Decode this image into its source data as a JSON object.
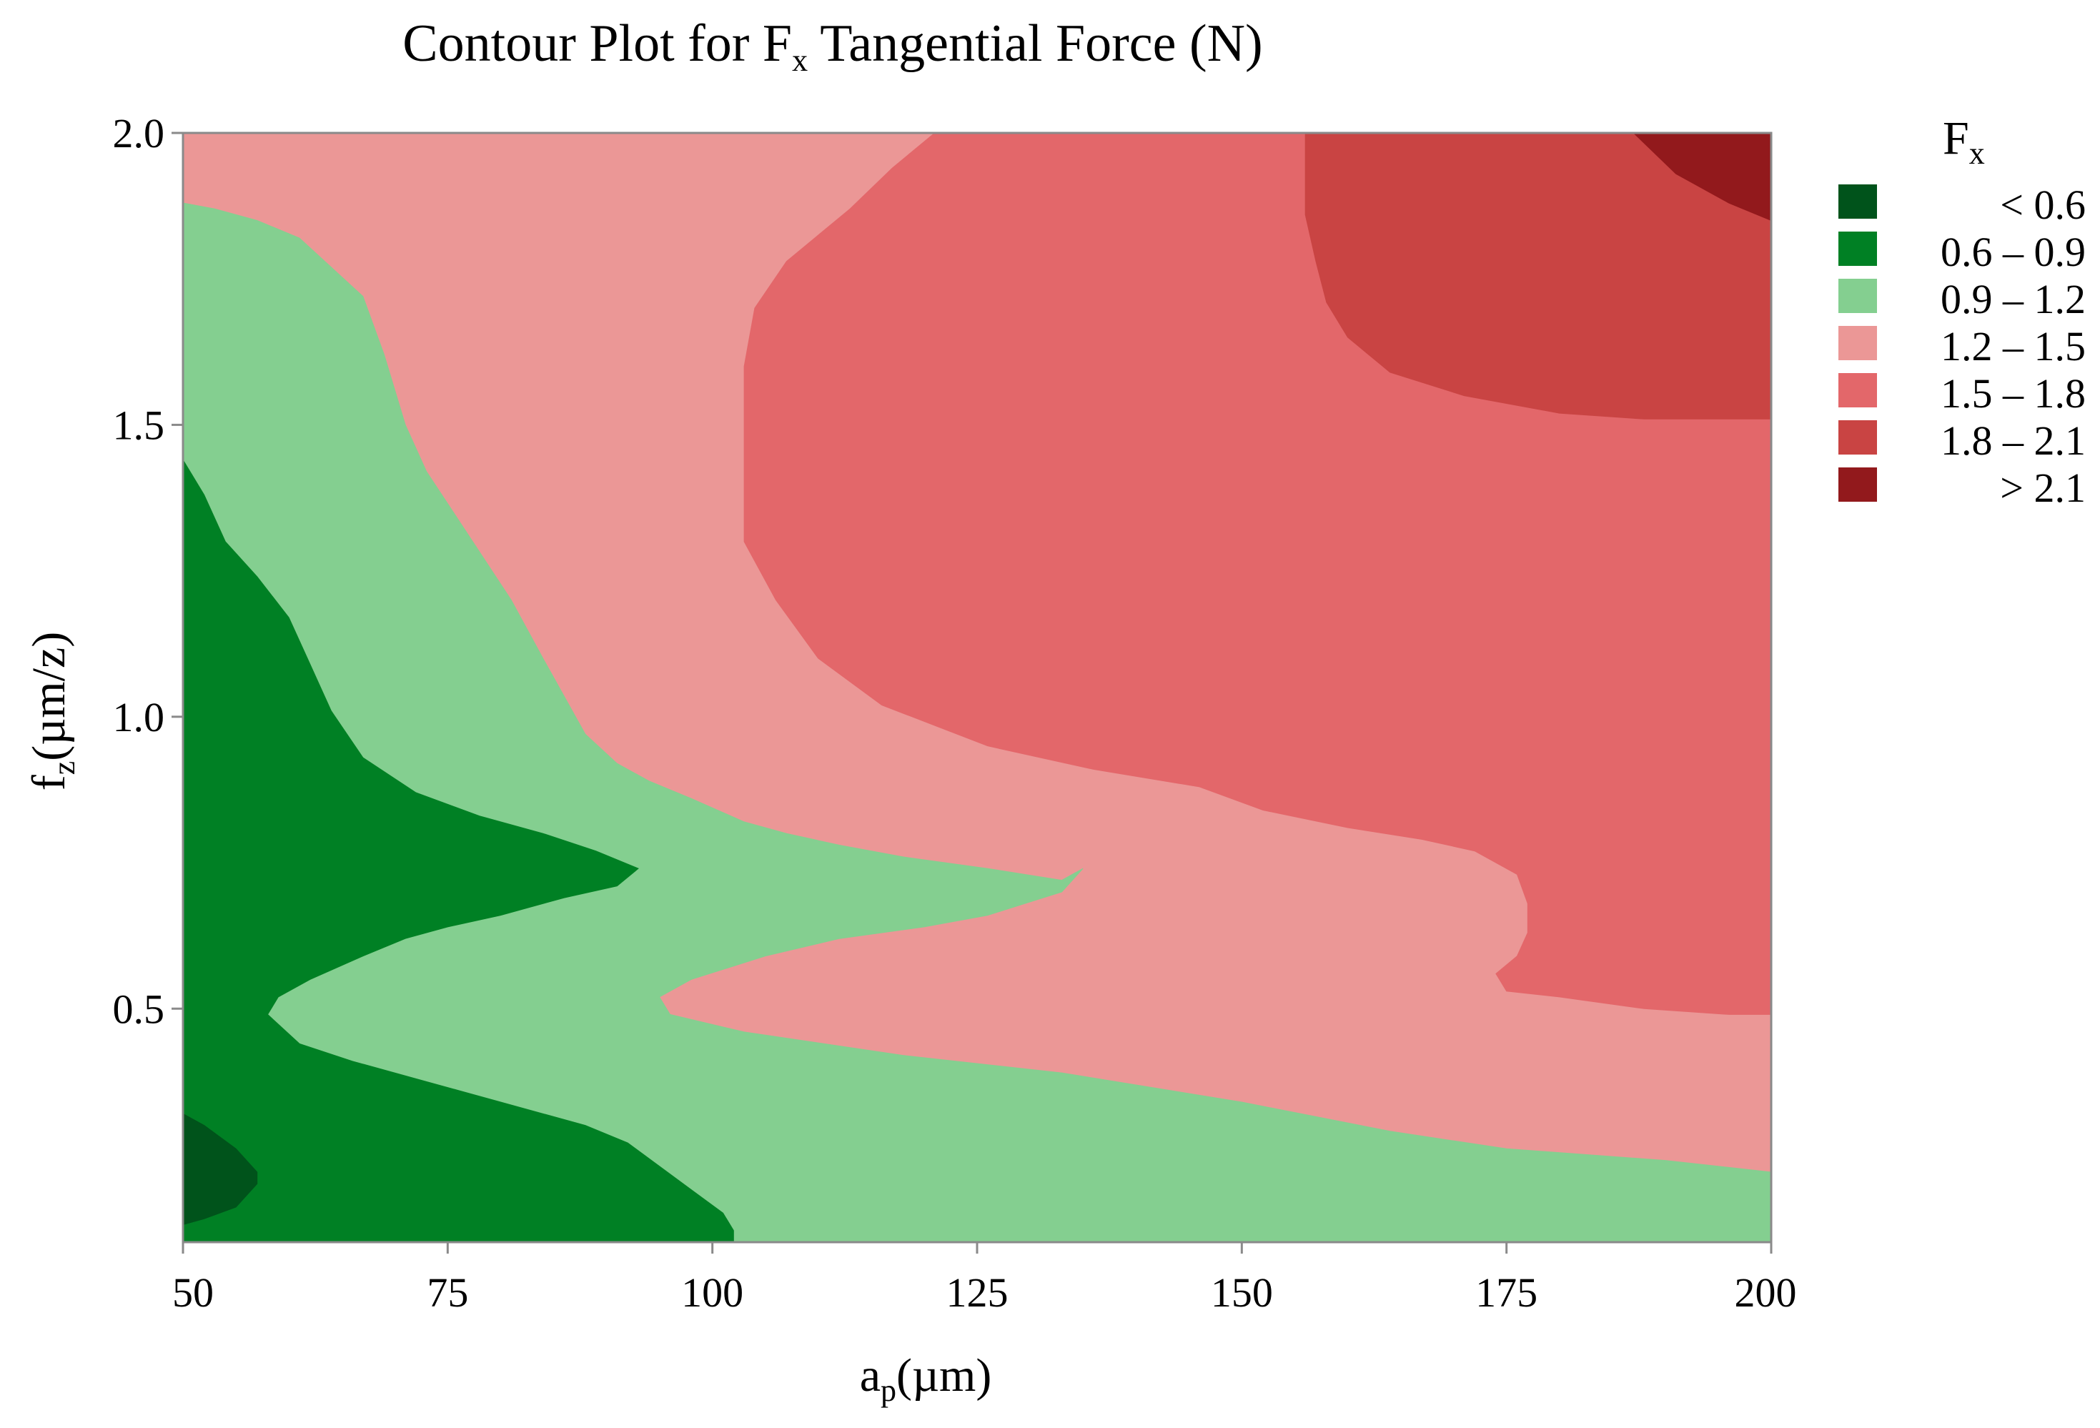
{
  "chart_data": {
    "type": "contour",
    "title": {
      "main": "Contour Plot for F",
      "sub": "x",
      "rest": " Tangential  Force (N)"
    },
    "xlabel": {
      "main": "a",
      "sub": "p",
      "rest": "(µm)"
    },
    "ylabel": {
      "main": "f",
      "sub": "z",
      "rest": "(µm/z)"
    },
    "xlim": [
      50,
      200
    ],
    "ylim": [
      0.1,
      2.0
    ],
    "xticks": [
      "50",
      "75",
      "100",
      "125",
      "150",
      "175",
      "200"
    ],
    "xtick_values": [
      50,
      75,
      100,
      125,
      150,
      175,
      200
    ],
    "yticks": [
      "0.5",
      "1.0",
      "1.5",
      "2.0"
    ],
    "ytick_values": [
      0.5,
      1.0,
      1.5,
      2.0
    ],
    "legend": {
      "title": {
        "main": "F",
        "sub": "x"
      },
      "position": "right",
      "entries": [
        {
          "label": "< 0.6",
          "color": "#00531b"
        },
        {
          "label": "0.6 – 0.9",
          "color": "#008024"
        },
        {
          "label": "0.9 – 1.2",
          "color": "#84cf90"
        },
        {
          "label": "1.2 – 1.5",
          "color": "#eb9796"
        },
        {
          "label": "1.5 – 1.8",
          "color": "#e3676a"
        },
        {
          "label": "1.8 – 2.1",
          "color": "#c94443"
        },
        {
          "label": "> 2.1",
          "color": "#92191c"
        }
      ]
    },
    "regions": [
      {
        "level": "1.2 – 1.5",
        "color": "#eb9796",
        "points": [
          [
            50,
            2.0
          ],
          [
            200,
            2.0
          ],
          [
            200,
            0.1
          ],
          [
            50,
            0.1
          ]
        ]
      },
      {
        "level": "0.9 – 1.2",
        "color": "#84cf90",
        "points": [
          [
            50,
            1.88
          ],
          [
            53,
            1.87
          ],
          [
            57,
            1.85
          ],
          [
            61,
            1.82
          ],
          [
            64,
            1.77
          ],
          [
            67,
            1.72
          ],
          [
            69,
            1.62
          ],
          [
            71,
            1.5
          ],
          [
            73,
            1.42
          ],
          [
            77,
            1.31
          ],
          [
            81,
            1.2
          ],
          [
            84,
            1.1
          ],
          [
            88,
            0.97
          ],
          [
            91,
            0.92
          ],
          [
            94,
            0.89
          ],
          [
            98,
            0.86
          ],
          [
            103,
            0.82
          ],
          [
            107,
            0.8
          ],
          [
            112,
            0.78
          ],
          [
            118,
            0.76
          ],
          [
            126,
            0.74
          ],
          [
            133,
            0.72
          ],
          [
            135,
            0.74
          ],
          [
            133,
            0.7
          ],
          [
            126,
            0.66
          ],
          [
            120,
            0.64
          ],
          [
            112,
            0.62
          ],
          [
            105,
            0.59
          ],
          [
            98,
            0.55
          ],
          [
            95,
            0.52
          ],
          [
            96,
            0.49
          ],
          [
            103,
            0.46
          ],
          [
            118,
            0.42
          ],
          [
            133,
            0.39
          ],
          [
            150,
            0.34
          ],
          [
            164,
            0.29
          ],
          [
            175,
            0.26
          ],
          [
            190,
            0.24
          ],
          [
            200,
            0.22
          ],
          [
            200,
            0.1
          ],
          [
            50,
            0.1
          ]
        ]
      },
      {
        "level": "0.6 – 0.9",
        "color": "#008024",
        "points": [
          [
            50,
            1.44
          ],
          [
            52,
            1.38
          ],
          [
            54,
            1.3
          ],
          [
            57,
            1.24
          ],
          [
            60,
            1.17
          ],
          [
            62,
            1.09
          ],
          [
            64,
            1.01
          ],
          [
            67,
            0.93
          ],
          [
            72,
            0.87
          ],
          [
            78,
            0.83
          ],
          [
            84,
            0.8
          ],
          [
            89,
            0.77
          ],
          [
            93,
            0.74
          ],
          [
            91,
            0.71
          ],
          [
            86,
            0.69
          ],
          [
            80,
            0.66
          ],
          [
            75,
            0.64
          ],
          [
            71,
            0.62
          ],
          [
            67,
            0.59
          ],
          [
            62,
            0.55
          ],
          [
            59,
            0.52
          ],
          [
            58,
            0.49
          ],
          [
            61,
            0.44
          ],
          [
            66,
            0.41
          ],
          [
            72,
            0.38
          ],
          [
            80,
            0.34
          ],
          [
            88,
            0.3
          ],
          [
            92,
            0.27
          ],
          [
            95,
            0.23
          ],
          [
            98,
            0.19
          ],
          [
            101,
            0.15
          ],
          [
            102,
            0.12
          ],
          [
            102,
            0.1
          ],
          [
            50,
            0.1
          ]
        ]
      },
      {
        "level": "< 0.6",
        "color": "#00531b",
        "points": [
          [
            50,
            0.32
          ],
          [
            52,
            0.3
          ],
          [
            55,
            0.26
          ],
          [
            57,
            0.22
          ],
          [
            57,
            0.2
          ],
          [
            55,
            0.16
          ],
          [
            52,
            0.14
          ],
          [
            50,
            0.13
          ]
        ]
      },
      {
        "level": "1.5 – 1.8",
        "color": "#e3676a",
        "points": [
          [
            121,
            2.0
          ],
          [
            200,
            2.0
          ],
          [
            200,
            0.49
          ],
          [
            196,
            0.49
          ],
          [
            188,
            0.5
          ],
          [
            180,
            0.52
          ],
          [
            175,
            0.53
          ],
          [
            174,
            0.56
          ],
          [
            176,
            0.59
          ],
          [
            177,
            0.63
          ],
          [
            177,
            0.68
          ],
          [
            176,
            0.73
          ],
          [
            172,
            0.77
          ],
          [
            167,
            0.79
          ],
          [
            160,
            0.81
          ],
          [
            152,
            0.84
          ],
          [
            146,
            0.88
          ],
          [
            136,
            0.91
          ],
          [
            126,
            0.95
          ],
          [
            116,
            1.02
          ],
          [
            110,
            1.1
          ],
          [
            106,
            1.2
          ],
          [
            103,
            1.3
          ],
          [
            103,
            1.4
          ],
          [
            103,
            1.5
          ],
          [
            103,
            1.6
          ],
          [
            104,
            1.7
          ],
          [
            107,
            1.78
          ],
          [
            113,
            1.87
          ],
          [
            117,
            1.94
          ]
        ]
      },
      {
        "level": "1.8 – 2.1",
        "color": "#c94443",
        "points": [
          [
            156,
            2.0
          ],
          [
            200,
            2.0
          ],
          [
            200,
            1.51
          ],
          [
            195,
            1.51
          ],
          [
            188,
            1.51
          ],
          [
            180,
            1.52
          ],
          [
            171,
            1.55
          ],
          [
            164,
            1.59
          ],
          [
            160,
            1.65
          ],
          [
            158,
            1.71
          ],
          [
            157,
            1.78
          ],
          [
            156,
            1.86
          ]
        ]
      },
      {
        "level": "> 2.1",
        "color": "#92191c",
        "points": [
          [
            187,
            2.0
          ],
          [
            200,
            2.0
          ],
          [
            200,
            1.85
          ],
          [
            196,
            1.88
          ],
          [
            191,
            1.93
          ]
        ]
      }
    ]
  }
}
